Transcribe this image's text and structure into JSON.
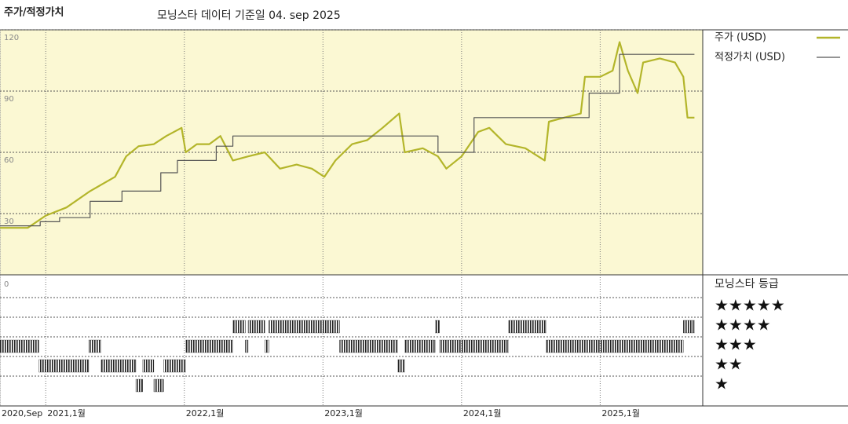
{
  "chart_data": {
    "type": "line",
    "title": "주가/적정가치",
    "subtitle": "모닝스타 데이터 기준일 04. sep 2025",
    "xlim": [
      2020.67,
      2025.74
    ],
    "xticks": [
      {
        "value": 2020.67,
        "label": "2020,Sep"
      },
      {
        "value": 2021,
        "label": "2021,1월"
      },
      {
        "value": 2022,
        "label": "2022,1월"
      },
      {
        "value": 2023,
        "label": "2023,1월"
      },
      {
        "value": 2024,
        "label": "2024,1월"
      },
      {
        "value": 2025,
        "label": "2025,1월"
      }
    ],
    "ylim": [
      0,
      120
    ],
    "yticks": [
      30,
      60,
      90,
      120
    ],
    "grid": true,
    "series": [
      {
        "name": "주가 (USD)",
        "color": "#b3b52a",
        "drawstyle": "line",
        "x": [
          2020.67,
          2020.87,
          2021.0,
          2021.15,
          2021.32,
          2021.5,
          2021.58,
          2021.67,
          2021.78,
          2021.87,
          2021.98,
          2022.01,
          2022.09,
          2022.18,
          2022.26,
          2022.35,
          2022.46,
          2022.58,
          2022.69,
          2022.81,
          2022.92,
          2023.01,
          2023.09,
          2023.21,
          2023.32,
          2023.43,
          2023.55,
          2023.59,
          2023.72,
          2023.83,
          2023.89,
          2024.0,
          2024.12,
          2024.2,
          2024.32,
          2024.46,
          2024.6,
          2024.63,
          2024.74,
          2024.86,
          2024.89,
          2025.0,
          2025.09,
          2025.14,
          2025.2,
          2025.27,
          2025.31,
          2025.43,
          2025.54,
          2025.6,
          2025.63,
          2025.68
        ],
        "values": [
          23,
          23,
          29,
          33,
          41,
          48,
          58,
          63,
          64,
          68,
          72,
          60,
          64,
          64,
          68,
          56,
          58,
          60,
          52,
          54,
          52,
          48,
          56,
          64,
          66,
          72,
          79,
          60,
          62,
          58,
          52,
          58,
          70,
          72,
          64,
          62,
          56,
          75,
          77,
          79,
          97,
          97,
          100,
          114,
          100,
          89,
          104,
          106,
          104,
          97,
          77,
          77
        ]
      },
      {
        "name": "적정가치 (USD)",
        "color": "#555555",
        "drawstyle": "steps-post",
        "x": [
          2020.67,
          2020.96,
          2021.1,
          2021.32,
          2021.55,
          2021.83,
          2021.95,
          2022.23,
          2022.35,
          2023.83,
          2024.09,
          2024.92,
          2025.14,
          2025.68
        ],
        "values": [
          24,
          26,
          28,
          36,
          41,
          50,
          56,
          63,
          68,
          60,
          77,
          89,
          108,
          108
        ]
      }
    ],
    "rating_title": "모닝스타 등급",
    "rating_yticks": [
      0
    ],
    "rating_legend": [
      "★★★★★",
      "★★★★",
      "★★★",
      "★★",
      "★"
    ],
    "rating_color": "#222222",
    "ratings": {
      "edges": [
        2020.67,
        2020.95,
        2021.31,
        2021.4,
        2021.65,
        2021.7,
        2021.78,
        2021.85,
        2022.01,
        2022.35,
        2022.44,
        2022.46,
        2022.58,
        2022.61,
        2023.12,
        2023.54,
        2023.59,
        2023.81,
        2023.84,
        2024.34,
        2024.61,
        2025.6,
        2025.68
      ],
      "stars": [
        3,
        2,
        3,
        2,
        1,
        2,
        1,
        2,
        3,
        4,
        3,
        4,
        3,
        4,
        3,
        2,
        3,
        4,
        3,
        4,
        3,
        4
      ]
    }
  }
}
